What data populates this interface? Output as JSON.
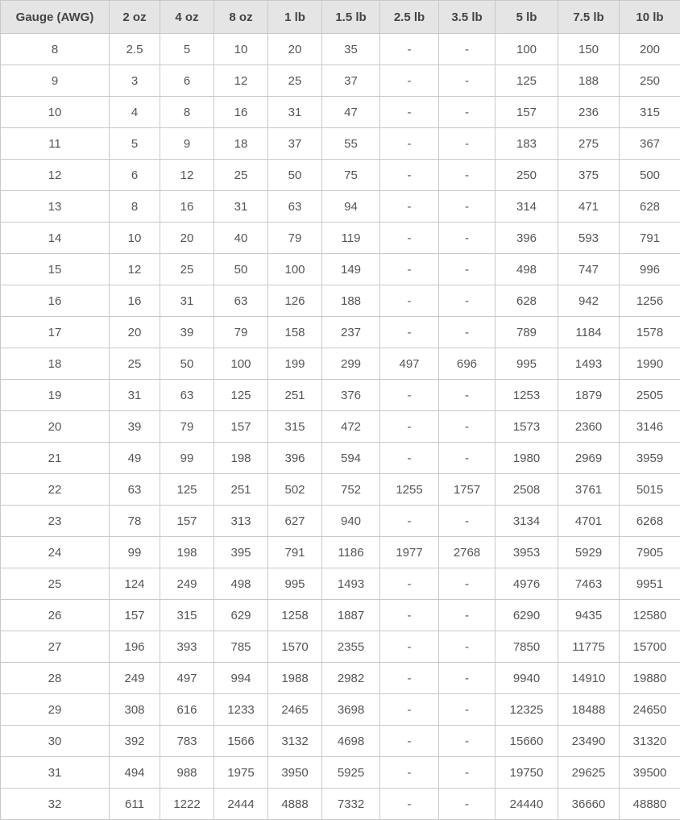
{
  "table": {
    "headers": [
      "Gauge (AWG)",
      "2 oz",
      "4 oz",
      "8 oz",
      "1 lb",
      "1.5 lb",
      "2.5 lb",
      "3.5 lb",
      "5 lb",
      "7.5 lb",
      "10 lb"
    ],
    "rows": [
      [
        "8",
        "2.5",
        "5",
        "10",
        "20",
        "35",
        "-",
        "-",
        "100",
        "150",
        "200"
      ],
      [
        "9",
        "3",
        "6",
        "12",
        "25",
        "37",
        "-",
        "-",
        "125",
        "188",
        "250"
      ],
      [
        "10",
        "4",
        "8",
        "16",
        "31",
        "47",
        "-",
        "-",
        "157",
        "236",
        "315"
      ],
      [
        "11",
        "5",
        "9",
        "18",
        "37",
        "55",
        "-",
        "-",
        "183",
        "275",
        "367"
      ],
      [
        "12",
        "6",
        "12",
        "25",
        "50",
        "75",
        "-",
        "-",
        "250",
        "375",
        "500"
      ],
      [
        "13",
        "8",
        "16",
        "31",
        "63",
        "94",
        "-",
        "-",
        "314",
        "471",
        "628"
      ],
      [
        "14",
        "10",
        "20",
        "40",
        "79",
        "119",
        "-",
        "-",
        "396",
        "593",
        "791"
      ],
      [
        "15",
        "12",
        "25",
        "50",
        "100",
        "149",
        "-",
        "-",
        "498",
        "747",
        "996"
      ],
      [
        "16",
        "16",
        "31",
        "63",
        "126",
        "188",
        "-",
        "-",
        "628",
        "942",
        "1256"
      ],
      [
        "17",
        "20",
        "39",
        "79",
        "158",
        "237",
        "-",
        "-",
        "789",
        "1184",
        "1578"
      ],
      [
        "18",
        "25",
        "50",
        "100",
        "199",
        "299",
        "497",
        "696",
        "995",
        "1493",
        "1990"
      ],
      [
        "19",
        "31",
        "63",
        "125",
        "251",
        "376",
        "-",
        "-",
        "1253",
        "1879",
        "2505"
      ],
      [
        "20",
        "39",
        "79",
        "157",
        "315",
        "472",
        "-",
        "-",
        "1573",
        "2360",
        "3146"
      ],
      [
        "21",
        "49",
        "99",
        "198",
        "396",
        "594",
        "-",
        "-",
        "1980",
        "2969",
        "3959"
      ],
      [
        "22",
        "63",
        "125",
        "251",
        "502",
        "752",
        "1255",
        "1757",
        "2508",
        "3761",
        "5015"
      ],
      [
        "23",
        "78",
        "157",
        "313",
        "627",
        "940",
        "-",
        "-",
        "3134",
        "4701",
        "6268"
      ],
      [
        "24",
        "99",
        "198",
        "395",
        "791",
        "1186",
        "1977",
        "2768",
        "3953",
        "5929",
        "7905"
      ],
      [
        "25",
        "124",
        "249",
        "498",
        "995",
        "1493",
        "-",
        "-",
        "4976",
        "7463",
        "9951"
      ],
      [
        "26",
        "157",
        "315",
        "629",
        "1258",
        "1887",
        "-",
        "-",
        "6290",
        "9435",
        "12580"
      ],
      [
        "27",
        "196",
        "393",
        "785",
        "1570",
        "2355",
        "-",
        "-",
        "7850",
        "11775",
        "15700"
      ],
      [
        "28",
        "249",
        "497",
        "994",
        "1988",
        "2982",
        "-",
        "-",
        "9940",
        "14910",
        "19880"
      ],
      [
        "29",
        "308",
        "616",
        "1233",
        "2465",
        "3698",
        "-",
        "-",
        "12325",
        "18488",
        "24650"
      ],
      [
        "30",
        "392",
        "783",
        "1566",
        "3132",
        "4698",
        "-",
        "-",
        "15660",
        "23490",
        "31320"
      ],
      [
        "31",
        "494",
        "988",
        "1975",
        "3950",
        "5925",
        "-",
        "-",
        "19750",
        "29625",
        "39500"
      ],
      [
        "32",
        "611",
        "1222",
        "2444",
        "4888",
        "7332",
        "-",
        "-",
        "24440",
        "36660",
        "48880"
      ]
    ]
  }
}
